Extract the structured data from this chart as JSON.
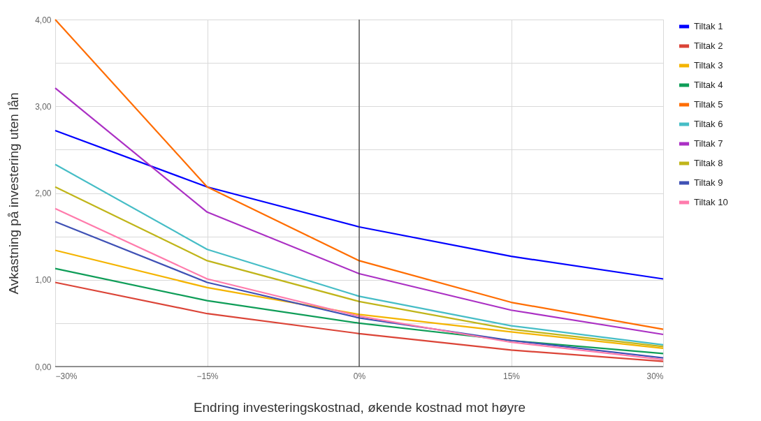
{
  "chart_data": {
    "type": "line",
    "xlabel": "Endring investeringskostnad, økende kostnad mot høyre",
    "ylabel": "Avkastning på investering uten lån",
    "x": [
      -30,
      -15,
      0,
      15,
      30
    ],
    "xlim": [
      -30,
      30
    ],
    "xticks": [
      {
        "value": -30,
        "label": "−30%"
      },
      {
        "value": -15,
        "label": "−15%"
      },
      {
        "value": 0,
        "label": "0%"
      },
      {
        "value": 15,
        "label": "15%"
      },
      {
        "value": 30,
        "label": "30%"
      }
    ],
    "ylim": [
      0,
      4
    ],
    "yticks": [
      {
        "value": 0,
        "label": "0,00"
      },
      {
        "value": 0.5,
        "label": null
      },
      {
        "value": 1,
        "label": "1,00"
      },
      {
        "value": 1.5,
        "label": null
      },
      {
        "value": 2,
        "label": "2,00"
      },
      {
        "value": 2.5,
        "label": null
      },
      {
        "value": 3,
        "label": "3,00"
      },
      {
        "value": 3.5,
        "label": null
      },
      {
        "value": 4,
        "label": "4,00"
      }
    ],
    "grid": true,
    "legend": "top right",
    "ref_lines": [
      {
        "axis": "x",
        "value": 0,
        "color": "#333333"
      }
    ],
    "series": [
      {
        "name": "Tiltak 1",
        "color": "#0000ff",
        "values": [
          2.72,
          2.07,
          1.61,
          1.27,
          1.01
        ]
      },
      {
        "name": "Tiltak 2",
        "color": "#db4437",
        "values": [
          0.97,
          0.61,
          0.38,
          0.19,
          0.06
        ]
      },
      {
        "name": "Tiltak 3",
        "color": "#f4b400",
        "values": [
          1.34,
          0.91,
          0.6,
          0.4,
          0.21
        ]
      },
      {
        "name": "Tiltak 4",
        "color": "#0f9d58",
        "values": [
          1.13,
          0.76,
          0.5,
          0.3,
          0.15
        ]
      },
      {
        "name": "Tiltak 5",
        "color": "#ff6d00",
        "values": [
          4.0,
          2.07,
          1.22,
          0.74,
          0.43
        ]
      },
      {
        "name": "Tiltak 6",
        "color": "#46bdc6",
        "values": [
          2.33,
          1.35,
          0.81,
          0.47,
          0.25
        ]
      },
      {
        "name": "Tiltak 7",
        "color": "#ab30c4",
        "values": [
          3.21,
          1.78,
          1.07,
          0.65,
          0.37
        ]
      },
      {
        "name": "Tiltak 8",
        "color": "#c0b51a",
        "values": [
          2.07,
          1.22,
          0.75,
          0.43,
          0.23
        ]
      },
      {
        "name": "Tiltak 9",
        "color": "#3f51b5",
        "values": [
          1.67,
          0.97,
          0.56,
          0.3,
          0.1
        ]
      },
      {
        "name": "Tiltak 10",
        "color": "#ff7bac",
        "values": [
          1.82,
          1.01,
          0.58,
          0.28,
          0.08
        ]
      }
    ]
  }
}
